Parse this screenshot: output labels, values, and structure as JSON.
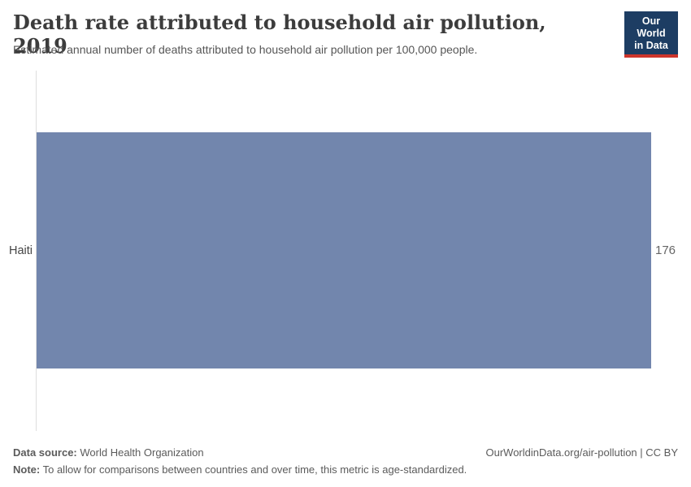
{
  "header": {
    "title": "Death rate attributed to household air pollution, 2019",
    "subtitle": "Estimated annual number of deaths attributed to household air pollution per 100,000 people.",
    "logo": {
      "line1": "Our World",
      "line2": "in Data"
    }
  },
  "chart": {
    "entity_label": "Haiti",
    "value_label": "176"
  },
  "chart_data": {
    "type": "bar",
    "orientation": "horizontal",
    "title": "Death rate attributed to household air pollution, 2019",
    "subtitle": "Estimated annual number of deaths attributed to household air pollution per 100,000 people.",
    "year": 2019,
    "categories": [
      "Haiti"
    ],
    "values": [
      176
    ],
    "value_labels": [
      "176"
    ],
    "xlim": [
      0,
      176
    ],
    "grid": false,
    "legend": "none",
    "bar_color": "#7286ad"
  },
  "footer": {
    "data_source_label": "Data source:",
    "data_source_value": "World Health Organization",
    "note_label": "Note:",
    "note_value": "To allow for comparisons between countries and over time, this metric is age-standardized.",
    "url_text": "OurWorldinData.org/air-pollution | CC BY"
  },
  "colors": {
    "bar": "#7286ad",
    "logo_bg": "#1d3d63",
    "logo_stripe": "#cd352c",
    "axis_line": "#dedede"
  }
}
